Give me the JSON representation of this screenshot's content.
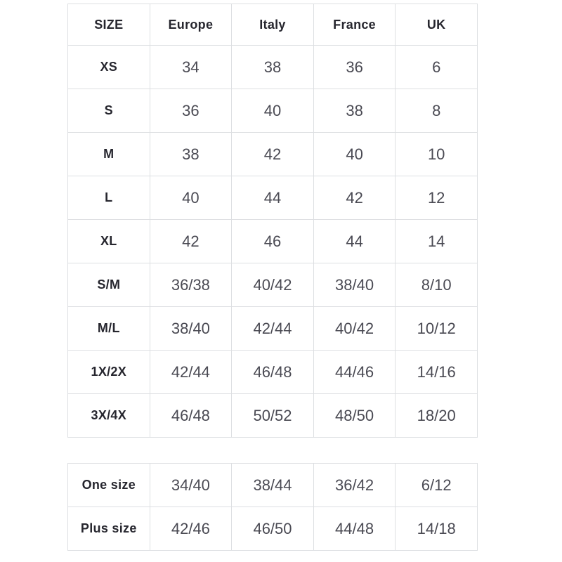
{
  "colors": {
    "background": "#ffffff",
    "border": "#dddfe2",
    "header_text": "#26262e",
    "cell_text": "#4a4a53"
  },
  "main_table": {
    "headers": [
      "SIZE",
      "Europe",
      "Italy",
      "France",
      "UK"
    ],
    "rows": [
      [
        "XS",
        "34",
        "38",
        "36",
        "6"
      ],
      [
        "S",
        "36",
        "40",
        "38",
        "8"
      ],
      [
        "M",
        "38",
        "42",
        "40",
        "10"
      ],
      [
        "L",
        "40",
        "44",
        "42",
        "12"
      ],
      [
        "XL",
        "42",
        "46",
        "44",
        "14"
      ],
      [
        "S/M",
        "36/38",
        "40/42",
        "38/40",
        "8/10"
      ],
      [
        "M/L",
        "38/40",
        "42/44",
        "40/42",
        "10/12"
      ],
      [
        "1X/2X",
        "42/44",
        "46/48",
        "44/46",
        "14/16"
      ],
      [
        "3X/4X",
        "46/48",
        "50/52",
        "48/50",
        "18/20"
      ]
    ]
  },
  "extra_table": {
    "rows": [
      [
        "One size",
        "34/40",
        "38/44",
        "36/42",
        "6/12"
      ],
      [
        "Plus size",
        "42/46",
        "46/50",
        "44/48",
        "14/18"
      ]
    ]
  }
}
